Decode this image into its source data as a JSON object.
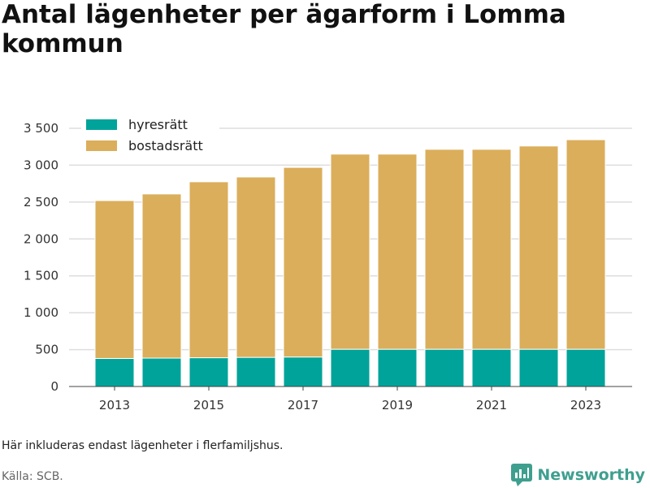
{
  "title": "Antal lägenheter per ägarform i Lomma kommun",
  "note": "Här inkluderas endast lägenheter i flerfamiljshus.",
  "source": "Källa: SCB.",
  "brand": "Newsworthy",
  "colors": {
    "hyresratt": "#00a39a",
    "bostadsratt": "#dbae5b",
    "grid": "#dddddd",
    "brand": "#3f9f8f"
  },
  "chart_data": {
    "type": "bar",
    "stacked": true,
    "categories": [
      "2013",
      "2014",
      "2015",
      "2016",
      "2017",
      "2018",
      "2019",
      "2020",
      "2021",
      "2022",
      "2023"
    ],
    "xticks": [
      "2013",
      "2015",
      "2017",
      "2019",
      "2021",
      "2023"
    ],
    "series": [
      {
        "name": "hyresrätt",
        "values": [
          380,
          385,
          390,
          395,
          400,
          505,
          505,
          505,
          505,
          505,
          505
        ]
      },
      {
        "name": "bostadsrätt",
        "values": [
          2140,
          2225,
          2385,
          2445,
          2570,
          2645,
          2645,
          2710,
          2710,
          2755,
          2840
        ]
      }
    ],
    "ylim": [
      0,
      3500
    ],
    "yticks": [
      0,
      500,
      1000,
      1500,
      2000,
      2500,
      3000,
      3500
    ],
    "yticklabels": [
      "0",
      "500",
      "1 000",
      "1 500",
      "2 000",
      "2 500",
      "3 000",
      "3 500"
    ],
    "legend_position": "top-left",
    "grid": true
  }
}
